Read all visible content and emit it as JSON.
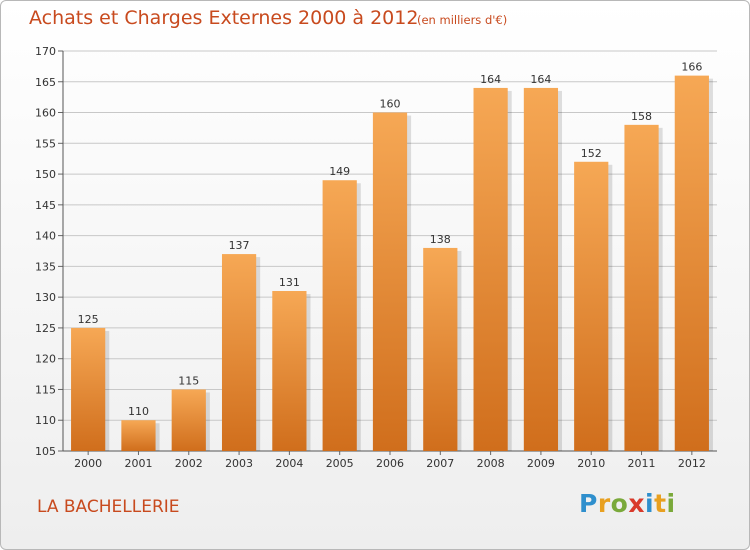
{
  "header": {
    "title": "Achats et Charges Externes 2000 à 2012",
    "subtitle": "(en milliers d'€)"
  },
  "footer": {
    "location": "LA BACHELLERIE",
    "logo_text": "Proxiti",
    "logo_colors": [
      "#2f8fcd",
      "#e8a020",
      "#7aa93a",
      "#d93a2b",
      "#2f8fcd",
      "#e8a020",
      "#7aa93a"
    ]
  },
  "colors": {
    "bar_light": "#f6a855",
    "bar_dark": "#d06e1c",
    "title": "#c84a1e",
    "grid": "#c8c8c8"
  },
  "chart_data": {
    "type": "bar",
    "title": "Achats et Charges Externes 2000 à 2012",
    "subtitle": "(en milliers d'€)",
    "xlabel": "",
    "ylabel": "",
    "categories": [
      "2000",
      "2001",
      "2002",
      "2003",
      "2004",
      "2005",
      "2006",
      "2007",
      "2008",
      "2009",
      "2010",
      "2011",
      "2012"
    ],
    "values": [
      125,
      110,
      115,
      137,
      131,
      149,
      160,
      138,
      164,
      164,
      152,
      158,
      166
    ],
    "ylim": [
      105,
      170
    ],
    "yticks": [
      105,
      110,
      115,
      120,
      125,
      130,
      135,
      140,
      145,
      150,
      155,
      160,
      165,
      170
    ],
    "grid": true,
    "data_labels": true
  }
}
